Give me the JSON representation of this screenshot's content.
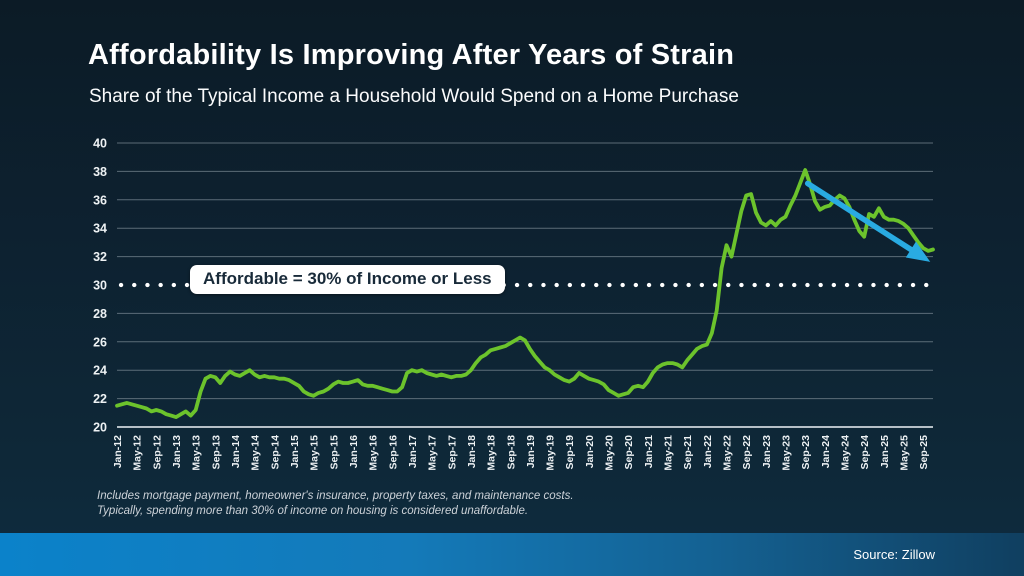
{
  "slide": {
    "title": "Affordability Is Improving After Years of Strain",
    "subtitle": "Share of the Typical Income a Household Would Spend on a Home Purchase",
    "footnote_line1": "Includes mortgage payment, homeowner's insurance, property taxes, and maintenance costs.",
    "footnote_line2": "Typically, spending more than 30% of income on housing is considered unaffordable.",
    "source": "Source: Zillow"
  },
  "annotation": {
    "affordable_label": "Affordable = 30% of Income or Less"
  },
  "colors": {
    "series_green": "#6CC32C",
    "arrow_blue": "#29ABE2",
    "reference_dots": "#FFFFFF",
    "gridline": "#7d8c96",
    "axis_line": "#b6c0c7",
    "axis_text": "#eef2f4",
    "background_dark": "#0d2130",
    "footer_blue": "#0b82ca"
  },
  "chart_data": {
    "type": "line",
    "title": "Affordability Is Improving After Years of Strain",
    "subtitle": "Share of the Typical Income a Household Would Spend on a Home Purchase",
    "frequency": "monthly",
    "x_start": "Jan-12",
    "x_end": "Nov-25",
    "x_tick_labels": [
      "Jan-12",
      "May-12",
      "Sep-12",
      "Jan-13",
      "May-13",
      "Sep-13",
      "Jan-14",
      "May-14",
      "Sep-14",
      "Jan-15",
      "May-15",
      "Sep-15",
      "Jan-16",
      "May-16",
      "Sep-16",
      "Jan-17",
      "May-17",
      "Sep-17",
      "Jan-18",
      "May-18",
      "Sep-18",
      "Jan-19",
      "May-19",
      "Sep-19",
      "Jan-20",
      "May-20",
      "Sep-20",
      "Jan-21",
      "May-21",
      "Sep-21",
      "Jan-22",
      "May-22",
      "Sep-22",
      "Jan-23",
      "May-23",
      "Sep-23",
      "Jan-24",
      "May-24",
      "Sep-24",
      "Jan-25",
      "May-25",
      "Sep-25"
    ],
    "x_tick_month_step": 4,
    "ylim": [
      20,
      40
    ],
    "ytick_step": 2,
    "grid": true,
    "legend": "none",
    "series": [
      {
        "name": "Share of typical income spent on a home purchase (%)",
        "color": "#6CC32C",
        "values": [
          21.5,
          21.6,
          21.7,
          21.6,
          21.5,
          21.4,
          21.3,
          21.1,
          21.2,
          21.1,
          20.9,
          20.8,
          20.7,
          20.9,
          21.1,
          20.8,
          21.2,
          22.5,
          23.4,
          23.6,
          23.5,
          23.1,
          23.6,
          23.9,
          23.7,
          23.6,
          23.8,
          24.0,
          23.7,
          23.5,
          23.6,
          23.5,
          23.5,
          23.4,
          23.4,
          23.3,
          23.1,
          22.9,
          22.5,
          22.3,
          22.2,
          22.4,
          22.5,
          22.7,
          23.0,
          23.2,
          23.1,
          23.1,
          23.2,
          23.3,
          23.0,
          22.9,
          22.9,
          22.8,
          22.7,
          22.6,
          22.5,
          22.5,
          22.8,
          23.8,
          24.0,
          23.9,
          24.0,
          23.8,
          23.7,
          23.6,
          23.7,
          23.6,
          23.5,
          23.6,
          23.6,
          23.7,
          24.0,
          24.5,
          24.9,
          25.1,
          25.4,
          25.5,
          25.6,
          25.7,
          25.9,
          26.1,
          26.3,
          26.1,
          25.5,
          25.0,
          24.6,
          24.2,
          24.0,
          23.7,
          23.5,
          23.3,
          23.2,
          23.4,
          23.8,
          23.6,
          23.4,
          23.3,
          23.2,
          23.0,
          22.6,
          22.4,
          22.2,
          22.3,
          22.4,
          22.8,
          22.9,
          22.8,
          23.2,
          23.8,
          24.2,
          24.4,
          24.5,
          24.5,
          24.4,
          24.2,
          24.7,
          25.1,
          25.5,
          25.7,
          25.8,
          26.6,
          28.2,
          31.2,
          32.8,
          32.0,
          33.6,
          35.2,
          36.3,
          36.4,
          35.1,
          34.4,
          34.2,
          34.5,
          34.2,
          34.6,
          34.8,
          35.6,
          36.3,
          37.2,
          38.1,
          37.1,
          35.9,
          35.3,
          35.5,
          35.6,
          36.0,
          36.3,
          36.1,
          35.5,
          34.6,
          33.8,
          33.4,
          35.0,
          34.8,
          35.4,
          34.8,
          34.6,
          34.6,
          34.5,
          34.3,
          34.0,
          33.5,
          33.0,
          32.6,
          32.4,
          32.5
        ]
      }
    ],
    "reference_line": {
      "value": 30,
      "style": "dotted",
      "color": "#FFFFFF",
      "label": "Affordable = 30% of Income or Less"
    },
    "trend_arrow": {
      "color": "#29ABE2",
      "start": {
        "month_index": 140.5,
        "value": 37.15
      },
      "end": {
        "month_index": 161.5,
        "value": 32.5
      }
    }
  }
}
